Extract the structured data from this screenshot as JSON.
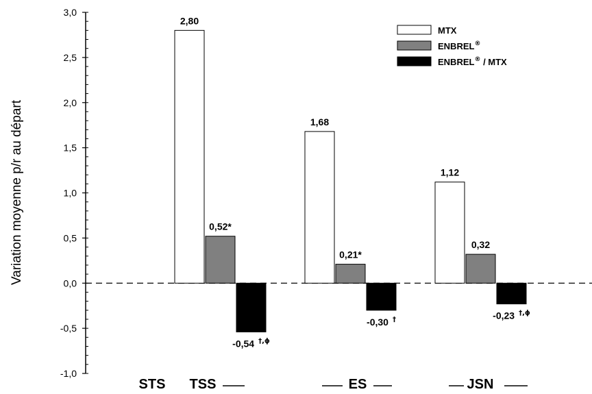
{
  "chart_data": {
    "type": "bar",
    "title": "",
    "xlabel": "",
    "ylabel": "Variation moyenne p/r au départ",
    "ylim": [
      -1.0,
      3.0
    ],
    "yticks": [
      "-1,0",
      "-0,5",
      "0,0",
      "0,5",
      "1,0",
      "1,5",
      "2,0",
      "2,5",
      "3,0"
    ],
    "category_labels": [
      "STS",
      "TSS",
      "ES",
      "JSN"
    ],
    "categories": [
      "TSS",
      "ES",
      "JSN"
    ],
    "legend_position": "top-right",
    "series": [
      {
        "name": "MTX",
        "name_sup": "",
        "color": "#ffffff",
        "values": [
          2.8,
          1.68,
          1.12
        ],
        "labels": [
          "2,80",
          "1,68",
          "1,12"
        ],
        "label_sups": [
          "",
          "",
          ""
        ]
      },
      {
        "name": "ENBREL",
        "name_sup": "®",
        "color": "#808080",
        "values": [
          0.52,
          0.21,
          0.32
        ],
        "labels": [
          "0,52*",
          "0,21*",
          "0,32"
        ],
        "label_sups": [
          "",
          "",
          ""
        ]
      },
      {
        "name": "ENBREL",
        "name_sup": "®",
        "name_suffix": " / MTX",
        "color": "#000000",
        "values": [
          -0.54,
          -0.3,
          -0.23
        ],
        "labels": [
          "-0,54",
          "-0,30",
          "-0,23"
        ],
        "label_sups": [
          "†,ϕ",
          "†",
          "†,ϕ"
        ]
      }
    ],
    "grid": false,
    "zero_line": "dashed"
  }
}
